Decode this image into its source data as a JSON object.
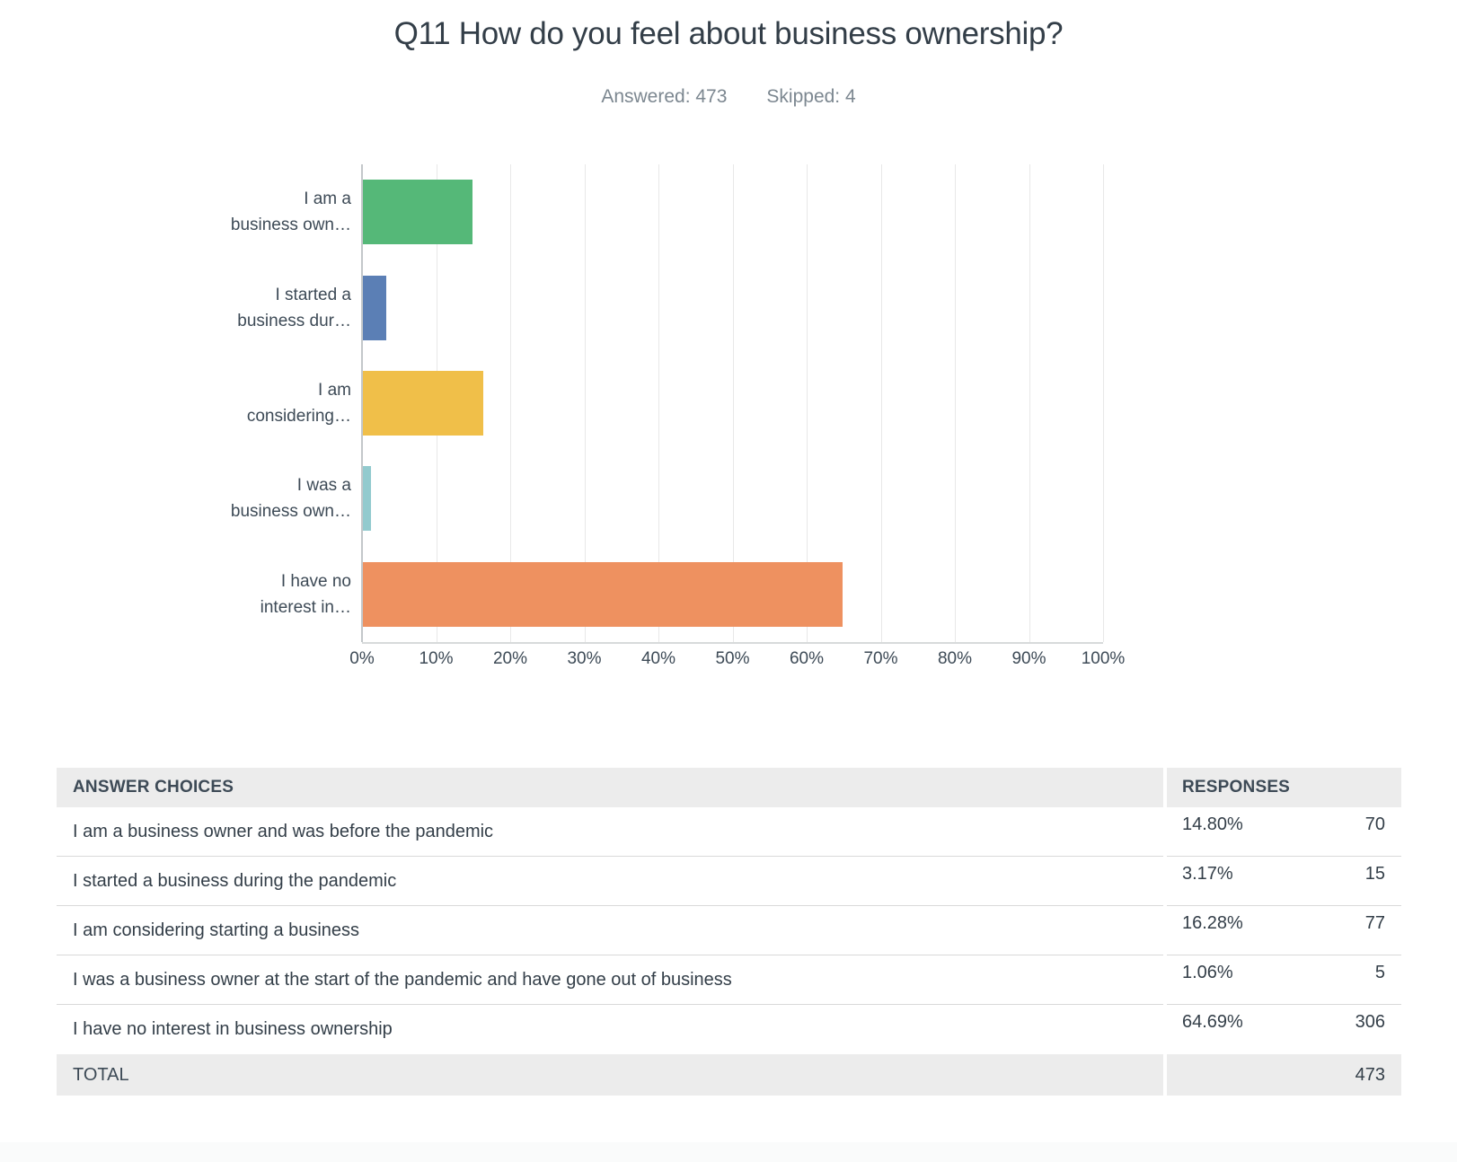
{
  "page": {
    "title": "Q11 How do you feel about business ownership?",
    "answered": "Answered: 473",
    "skipped": "Skipped: 4"
  },
  "chart_data": {
    "type": "bar",
    "orientation": "horizontal",
    "title": "Q11 How do you feel about business ownership?",
    "answered": 473,
    "skipped": 4,
    "categories": [
      "I am a business owner and was before the pandemic",
      "I started a business during the pandemic",
      "I am considering starting a business",
      "I was a business owner at the start of the pandemic and have gone out of business",
      "I have no interest in business ownership"
    ],
    "category_labels_truncated": [
      [
        "I am a",
        "business own…"
      ],
      [
        "I started a",
        "business dur…"
      ],
      [
        "I am",
        "considering…"
      ],
      [
        "I was a",
        "business own…"
      ],
      [
        "I have no",
        "interest in…"
      ]
    ],
    "values": [
      14.8,
      3.17,
      16.28,
      1.06,
      64.69
    ],
    "counts": [
      70,
      15,
      77,
      5,
      306
    ],
    "bar_colors": [
      "#55B878",
      "#5B7FB5",
      "#F0BF49",
      "#92CACE",
      "#EE9160"
    ],
    "xlabel": "",
    "ylabel": "",
    "xlim": [
      0,
      100
    ],
    "x_ticks": [
      "0%",
      "10%",
      "20%",
      "30%",
      "40%",
      "50%",
      "60%",
      "70%",
      "80%",
      "90%",
      "100%"
    ],
    "grid": true,
    "legend": false
  },
  "table": {
    "header": {
      "answer": "ANSWER CHOICES",
      "responses": "RESPONSES"
    },
    "rows": [
      {
        "answer": "I am a business owner and was before the pandemic",
        "percent": "14.80%",
        "count": "70"
      },
      {
        "answer": "I started a business during the pandemic",
        "percent": "3.17%",
        "count": "15"
      },
      {
        "answer": "I am considering starting a business",
        "percent": "16.28%",
        "count": "77"
      },
      {
        "answer": "I was a business owner at the start of the pandemic and have gone out of business",
        "percent": "1.06%",
        "count": "5"
      },
      {
        "answer": "I have no interest in business ownership",
        "percent": "64.69%",
        "count": "306"
      }
    ],
    "total": {
      "label": "TOTAL",
      "value": "473"
    }
  }
}
